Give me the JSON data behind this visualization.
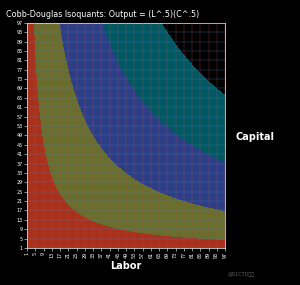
{
  "title": "Cobb-Douglas Isoquants: Output = (L^.5)(C^.5)",
  "xlabel": "Labor",
  "ylabel": "Capital",
  "labor_range": [
    1,
    97
  ],
  "capital_range": [
    1,
    97
  ],
  "tick_step": 4,
  "isoquant_levels": [
    20,
    40,
    60,
    80
  ],
  "isoquant_colors": [
    "#cc1111",
    "#888800",
    "#443399",
    "#008899"
  ],
  "background_color": "#000000",
  "plot_bg_color": "#000000",
  "title_color": "#ffffff",
  "label_color": "#ffffff",
  "tick_color": "#ffffff",
  "grid_color_h": "#4488cc",
  "grid_color_v": "#cc4444",
  "figsize": [
    3.0,
    2.85
  ],
  "dpi": 100
}
